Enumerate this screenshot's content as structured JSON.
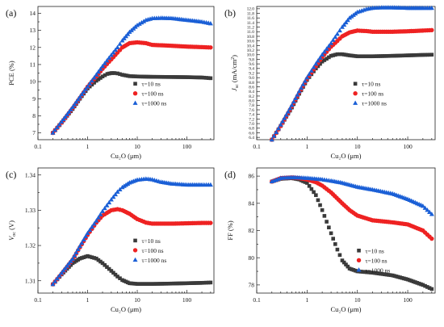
{
  "colors": {
    "s1": "#3a3a3a",
    "s2": "#ee2222",
    "s3": "#1a5fd6"
  },
  "chart_data": [
    {
      "type": "scatter",
      "panel_label": "(a)",
      "ylabel": "PCE (%)",
      "xlabel": "Cu₂O (μm)",
      "xscale": "log",
      "xlim": [
        0.1,
        350
      ],
      "ylim": [
        6.6,
        14.4
      ],
      "xticks": [
        "0.1",
        "1",
        "10",
        "100"
      ],
      "yticks": [
        7,
        8,
        9,
        10,
        11,
        12,
        13,
        14
      ],
      "legend_position": "center-right",
      "series": [
        {
          "name": "τ=10 ns",
          "marker": "square",
          "color": "s1",
          "points": [
            [
              0.2,
              7.0
            ],
            [
              0.3,
              7.6
            ],
            [
              0.5,
              8.4
            ],
            [
              0.7,
              9.0
            ],
            [
              1,
              9.6
            ],
            [
              1.5,
              10.05
            ],
            [
              2,
              10.3
            ],
            [
              2.5,
              10.45
            ],
            [
              3,
              10.5
            ],
            [
              3.5,
              10.5
            ],
            [
              4,
              10.48
            ],
            [
              5,
              10.4
            ],
            [
              7,
              10.32
            ],
            [
              10,
              10.3
            ],
            [
              20,
              10.28
            ],
            [
              50,
              10.27
            ],
            [
              100,
              10.26
            ],
            [
              200,
              10.24
            ],
            [
              300,
              10.2
            ]
          ]
        },
        {
          "name": "τ=100 ns",
          "marker": "circle",
          "color": "s2",
          "points": [
            [
              0.2,
              7.0
            ],
            [
              0.3,
              7.6
            ],
            [
              0.5,
              8.45
            ],
            [
              0.7,
              9.05
            ],
            [
              1,
              9.7
            ],
            [
              1.5,
              10.3
            ],
            [
              2,
              10.75
            ],
            [
              3,
              11.3
            ],
            [
              4,
              11.7
            ],
            [
              5,
              12.0
            ],
            [
              7,
              12.25
            ],
            [
              10,
              12.3
            ],
            [
              15,
              12.25
            ],
            [
              20,
              12.15
            ],
            [
              50,
              12.1
            ],
            [
              100,
              12.05
            ],
            [
              200,
              12.02
            ],
            [
              300,
              12.0
            ]
          ]
        },
        {
          "name": "τ=1000 ns",
          "marker": "triangle",
          "color": "s3",
          "points": [
            [
              0.2,
              7.0
            ],
            [
              0.3,
              7.65
            ],
            [
              0.5,
              8.5
            ],
            [
              0.7,
              9.1
            ],
            [
              1,
              9.7
            ],
            [
              1.5,
              10.4
            ],
            [
              2,
              10.9
            ],
            [
              3,
              11.55
            ],
            [
              4,
              12.0
            ],
            [
              5,
              12.4
            ],
            [
              7,
              12.9
            ],
            [
              10,
              13.3
            ],
            [
              15,
              13.6
            ],
            [
              20,
              13.7
            ],
            [
              30,
              13.72
            ],
            [
              50,
              13.7
            ],
            [
              100,
              13.6
            ],
            [
              200,
              13.5
            ],
            [
              300,
              13.4
            ]
          ]
        }
      ]
    },
    {
      "type": "scatter",
      "panel_label": "(b)",
      "ylabel": "J",
      "ylabel_sub": "sc",
      "ylabel_unit": " (mA/cm",
      "ylabel_sup": "2",
      "ylabel_end": ")",
      "xlabel": "Cu₂O (μm)",
      "xscale": "log",
      "xlim": [
        0.1,
        350
      ],
      "ylim": [
        6.3,
        12.1
      ],
      "xticks": [
        "0.1",
        "1",
        "10",
        "100"
      ],
      "yticks": [
        "6.4",
        "6.6",
        "6.8",
        "7.0",
        "7.2",
        "7.4",
        "7.6",
        "7.8",
        "8.0",
        "8.2",
        "8.4",
        "8.6",
        "8.8",
        "9.0",
        "9.2",
        "9.4",
        "9.6",
        "9.8",
        "10.0",
        "10.2",
        "10.4",
        "10.6",
        "10.8",
        "11.0",
        "11.2",
        "11.4",
        "11.6",
        "11.8",
        "12.0"
      ],
      "legend_position": "center-right",
      "series": [
        {
          "name": "τ=10 ns",
          "marker": "square",
          "color": "s1",
          "points": [
            [
              0.2,
              6.3
            ],
            [
              0.3,
              6.9
            ],
            [
              0.5,
              7.7
            ],
            [
              0.7,
              8.3
            ],
            [
              1,
              8.9
            ],
            [
              1.5,
              9.4
            ],
            [
              2,
              9.7
            ],
            [
              3,
              9.95
            ],
            [
              4,
              10.02
            ],
            [
              5,
              10.02
            ],
            [
              7,
              9.97
            ],
            [
              10,
              9.93
            ],
            [
              20,
              9.93
            ],
            [
              50,
              9.95
            ],
            [
              100,
              9.97
            ],
            [
              200,
              9.99
            ],
            [
              300,
              10.0
            ]
          ]
        },
        {
          "name": "τ=100 ns",
          "marker": "circle",
          "color": "s2",
          "points": [
            [
              0.2,
              6.3
            ],
            [
              0.3,
              6.9
            ],
            [
              0.5,
              7.75
            ],
            [
              0.7,
              8.35
            ],
            [
              1,
              8.95
            ],
            [
              1.5,
              9.5
            ],
            [
              2,
              9.9
            ],
            [
              3,
              10.35
            ],
            [
              4,
              10.6
            ],
            [
              5,
              10.8
            ],
            [
              7,
              10.97
            ],
            [
              10,
              11.05
            ],
            [
              15,
              11.03
            ],
            [
              20,
              11.0
            ],
            [
              50,
              11.0
            ],
            [
              100,
              11.02
            ],
            [
              200,
              11.05
            ],
            [
              300,
              11.07
            ]
          ]
        },
        {
          "name": "τ=1000 ns",
          "marker": "triangle",
          "color": "s3",
          "points": [
            [
              0.2,
              6.3
            ],
            [
              0.3,
              6.95
            ],
            [
              0.5,
              7.8
            ],
            [
              0.7,
              8.4
            ],
            [
              1,
              9.0
            ],
            [
              1.5,
              9.6
            ],
            [
              2,
              10.0
            ],
            [
              3,
              10.5
            ],
            [
              4,
              10.9
            ],
            [
              5,
              11.2
            ],
            [
              7,
              11.6
            ],
            [
              10,
              11.85
            ],
            [
              15,
              11.98
            ],
            [
              20,
              12.03
            ],
            [
              30,
              12.05
            ],
            [
              50,
              12.05
            ],
            [
              100,
              12.03
            ],
            [
              200,
              12.03
            ],
            [
              300,
              12.03
            ]
          ]
        }
      ]
    },
    {
      "type": "scatter",
      "panel_label": "(c)",
      "ylabel": "V",
      "ylabel_sub": "oc",
      "ylabel_unit": " (V)",
      "xlabel": "Cu₂O (μm)",
      "xscale": "log",
      "xlim": [
        0.1,
        350
      ],
      "ylim": [
        1.3065,
        1.342
      ],
      "xticks": [
        "0.1",
        "1",
        "10",
        "100"
      ],
      "yticks": [
        "1.31",
        "1.32",
        "1.33",
        "1.34"
      ],
      "legend_position": "center-right",
      "series": [
        {
          "name": "τ=10 ns",
          "marker": "square",
          "color": "s1",
          "points": [
            [
              0.2,
              1.309
            ],
            [
              0.3,
              1.3118
            ],
            [
              0.5,
              1.315
            ],
            [
              0.7,
              1.3163
            ],
            [
              1,
              1.317
            ],
            [
              1.5,
              1.3163
            ],
            [
              2,
              1.315
            ],
            [
              3,
              1.3128
            ],
            [
              4,
              1.3112
            ],
            [
              5,
              1.3102
            ],
            [
              7,
              1.3093
            ],
            [
              10,
              1.3091
            ],
            [
              20,
              1.3091
            ],
            [
              50,
              1.3092
            ],
            [
              100,
              1.3093
            ],
            [
              200,
              1.3094
            ],
            [
              300,
              1.3095
            ]
          ]
        },
        {
          "name": "τ=100 ns",
          "marker": "circle",
          "color": "s2",
          "points": [
            [
              0.2,
              1.309
            ],
            [
              0.3,
              1.312
            ],
            [
              0.5,
              1.316
            ],
            [
              0.7,
              1.3195
            ],
            [
              1,
              1.323
            ],
            [
              1.5,
              1.3265
            ],
            [
              2,
              1.3285
            ],
            [
              3,
              1.33
            ],
            [
              4,
              1.3303
            ],
            [
              5,
              1.33
            ],
            [
              7,
              1.329
            ],
            [
              10,
              1.3275
            ],
            [
              15,
              1.3265
            ],
            [
              20,
              1.3262
            ],
            [
              50,
              1.3262
            ],
            [
              100,
              1.3263
            ],
            [
              200,
              1.3264
            ],
            [
              300,
              1.3264
            ]
          ]
        },
        {
          "name": "τ=1000 ns",
          "marker": "triangle",
          "color": "s3",
          "points": [
            [
              0.2,
              1.309
            ],
            [
              0.3,
              1.3122
            ],
            [
              0.5,
              1.3162
            ],
            [
              0.7,
              1.3198
            ],
            [
              1,
              1.3235
            ],
            [
              1.5,
              1.327
            ],
            [
              2,
              1.3297
            ],
            [
              3,
              1.333
            ],
            [
              4,
              1.3352
            ],
            [
              5,
              1.3365
            ],
            [
              7,
              1.3378
            ],
            [
              10,
              1.3386
            ],
            [
              15,
              1.3389
            ],
            [
              20,
              1.3387
            ],
            [
              30,
              1.338
            ],
            [
              50,
              1.3375
            ],
            [
              100,
              1.3372
            ],
            [
              200,
              1.3372
            ],
            [
              300,
              1.3372
            ]
          ]
        }
      ]
    },
    {
      "type": "scatter",
      "panel_label": "(d)",
      "ylabel": "FF (%)",
      "xlabel": "Cu₂O (μm)",
      "xscale": "log",
      "xlim": [
        0.1,
        350
      ],
      "ylim": [
        77.4,
        86.6
      ],
      "xticks": [
        "0.1",
        "1",
        "10",
        "100"
      ],
      "yticks": [
        78,
        80,
        82,
        84,
        86
      ],
      "legend_position": "bottom-right",
      "series": [
        {
          "name": "τ=10 ns",
          "marker": "square",
          "color": "s1",
          "points": [
            [
              0.2,
              85.6
            ],
            [
              0.3,
              85.8
            ],
            [
              0.5,
              85.85
            ],
            [
              0.7,
              85.75
            ],
            [
              1,
              85.5
            ],
            [
              1.5,
              84.6
            ],
            [
              2,
              83.5
            ],
            [
              3,
              81.8
            ],
            [
              4,
              80.6
            ],
            [
              5,
              79.8
            ],
            [
              7,
              79.2
            ],
            [
              10,
              79.0
            ],
            [
              20,
              78.9
            ],
            [
              50,
              78.7
            ],
            [
              100,
              78.4
            ],
            [
              200,
              78.0
            ],
            [
              300,
              77.7
            ]
          ]
        },
        {
          "name": "τ=100 ns",
          "marker": "circle",
          "color": "s2",
          "points": [
            [
              0.2,
              85.6
            ],
            [
              0.3,
              85.85
            ],
            [
              0.5,
              85.9
            ],
            [
              0.7,
              85.85
            ],
            [
              1,
              85.75
            ],
            [
              1.5,
              85.55
            ],
            [
              2,
              85.3
            ],
            [
              3,
              84.8
            ],
            [
              5,
              84.0
            ],
            [
              7,
              83.5
            ],
            [
              10,
              83.1
            ],
            [
              20,
              82.75
            ],
            [
              50,
              82.6
            ],
            [
              100,
              82.45
            ],
            [
              200,
              82.0
            ],
            [
              300,
              81.4
            ]
          ]
        },
        {
          "name": "τ=1000 ns",
          "marker": "triangle",
          "color": "s3",
          "points": [
            [
              0.2,
              85.6
            ],
            [
              0.3,
              85.85
            ],
            [
              0.5,
              85.9
            ],
            [
              0.7,
              85.88
            ],
            [
              1,
              85.85
            ],
            [
              2,
              85.75
            ],
            [
              3,
              85.65
            ],
            [
              5,
              85.5
            ],
            [
              10,
              85.2
            ],
            [
              20,
              85.0
            ],
            [
              50,
              84.7
            ],
            [
              100,
              84.3
            ],
            [
              200,
              83.8
            ],
            [
              300,
              83.2
            ]
          ]
        }
      ]
    }
  ]
}
